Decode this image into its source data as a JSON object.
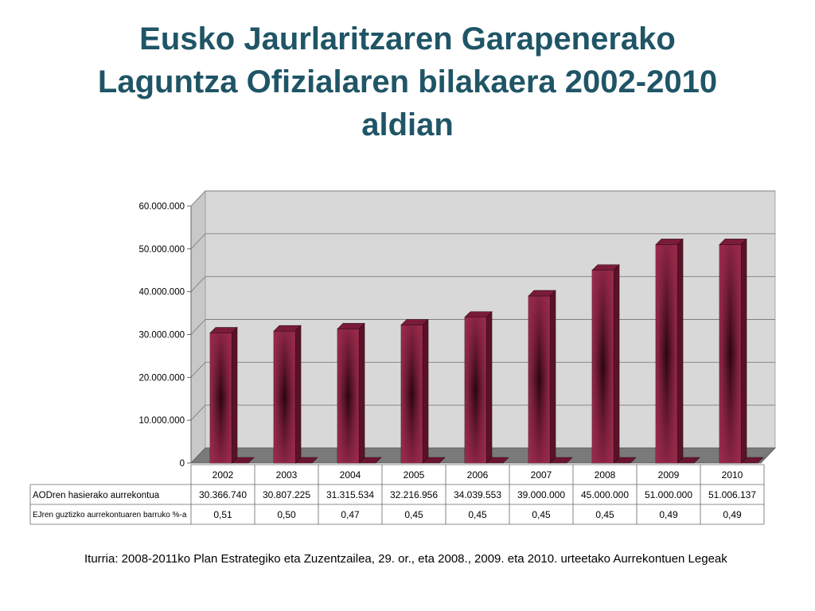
{
  "slide": {
    "title_lines": [
      "Eusko Jaurlaritzaren Garapenerako",
      "Laguntza Ofizialaren bilakaera 2002-2010",
      "aldian"
    ],
    "source": "Iturria: 2008-2011ko Plan Estrategiko eta Zuzentzailea, 29. or., eta 2008., 2009. eta 2010. urteetako Aurrekontuen Legeak"
  },
  "colors": {
    "title": "#1f5566",
    "bar_main": "#8c2240",
    "bar_dark": "#2a0510",
    "bar_side": "#5a1228",
    "wall": "#d8d8d8",
    "floor": "#7a7a7a",
    "gridline": "#808080"
  },
  "chart_data": {
    "type": "bar",
    "style": "3d",
    "categories": [
      "2002",
      "2003",
      "2004",
      "2005",
      "2006",
      "2007",
      "2008",
      "2009",
      "2010"
    ],
    "values": [
      30366740,
      30807225,
      31315534,
      32216956,
      34039553,
      39000000,
      45000000,
      51000000,
      51006137
    ],
    "ylim": [
      0,
      60000000
    ],
    "yticks": [
      "0",
      "10.000.000",
      "20.000.000",
      "30.000.000",
      "40.000.000",
      "50.000.000",
      "60.000.000"
    ],
    "grid": true,
    "legend": "none",
    "data_table": {
      "rows": [
        {
          "label": "AODren hasierako aurrekontua",
          "cells": [
            "30.366.740",
            "30.807.225",
            "31.315.534",
            "32.216.956",
            "34.039.553",
            "39.000.000",
            "45.000.000",
            "51.000.000",
            "51.006.137"
          ]
        },
        {
          "label": "EJren guztizko aurrekontuaren barruko %-a",
          "cells": [
            "0,51",
            "0,50",
            "0,47",
            "0,45",
            "0,45",
            "0,45",
            "0,45",
            "0,49",
            "0,49"
          ]
        }
      ]
    }
  }
}
